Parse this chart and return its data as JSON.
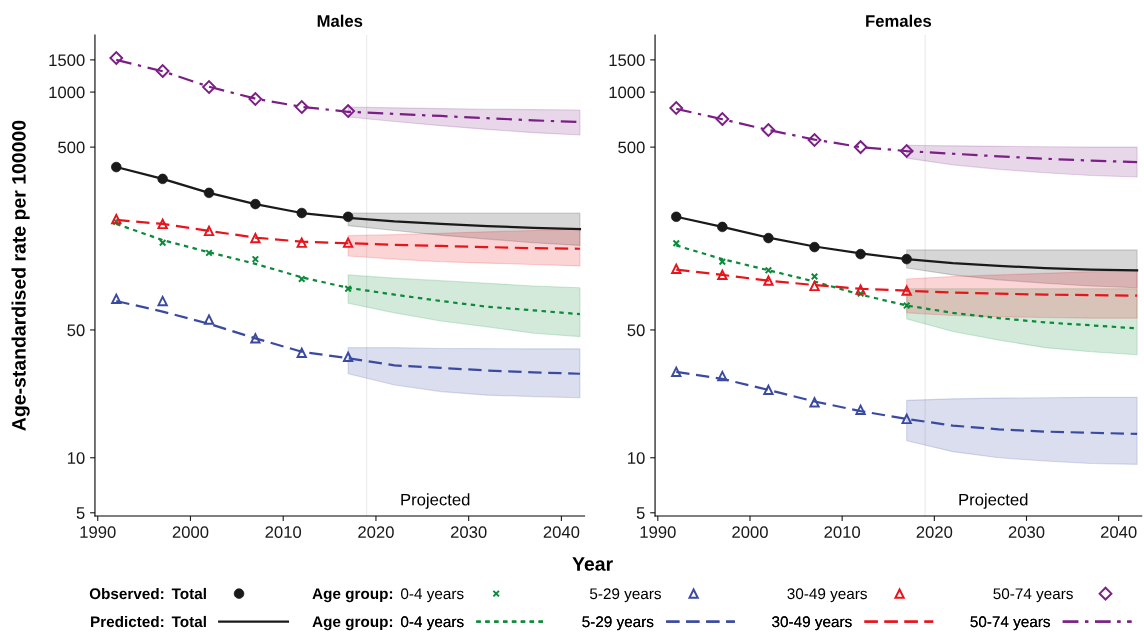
{
  "chart_data": [
    {
      "type": "line",
      "title": "Males",
      "xlabel": "Year",
      "ylabel": "Age-standardised rate per 100000",
      "legend_title": [
        "Observed:",
        "Age group:",
        "Predicted:",
        "Age group:"
      ],
      "legend": "bottom",
      "log": "y",
      "grid": false,
      "xlim": [
        1989.7,
        2042.5
      ],
      "ylim": [
        4.8,
        2050
      ],
      "xticks": [
        1990,
        2000,
        2010,
        2020,
        2030,
        2040
      ],
      "yticks": [
        5,
        10,
        50,
        500,
        1000,
        1500
      ],
      "ref_lines": [
        {
          "axis": "x",
          "value": 2019,
          "label": "Projected",
          "color": "#ebebeb"
        }
      ],
      "series": [
        {
          "name": "Total",
          "type": "scatter",
          "marker": "circle",
          "color": "#1a1a1a",
          "x": [
            1992,
            1997,
            2002,
            2007,
            2012,
            2017
          ],
          "values": [
            389,
            335,
            281,
            244,
            218,
            208
          ]
        },
        {
          "name": "0-4 years",
          "type": "scatter",
          "marker": "cross",
          "color": "#0a8a3a",
          "x": [
            1992,
            1997,
            2002,
            2007,
            2012,
            2017
          ],
          "values": [
            195,
            150,
            132,
            122,
            95,
            84
          ]
        },
        {
          "name": "5-29 years",
          "type": "scatter",
          "marker": "triangle",
          "color": "#3a4aa0",
          "x": [
            1992,
            1997,
            2002,
            2007,
            2012,
            2017
          ],
          "values": [
            74,
            72,
            57,
            45,
            37.5,
            35.6
          ]
        },
        {
          "name": "30-49 years",
          "type": "scatter",
          "marker": "triangle",
          "color": "#e8141c",
          "x": [
            1992,
            1997,
            2002,
            2007,
            2012,
            2017
          ],
          "values": [
            202,
            190,
            174,
            159,
            150,
            150
          ]
        },
        {
          "name": "50-74 years",
          "type": "scatter",
          "marker": "diamond",
          "color": "#7b1f86",
          "x": [
            1992,
            1997,
            2002,
            2007,
            2012,
            2017
          ],
          "values": [
            1535,
            1303,
            1065,
            916,
            828,
            787
          ]
        },
        {
          "name": "Total",
          "line_style": "solid",
          "color": "#1a1a1a",
          "x": [
            1992,
            1997,
            2002,
            2007,
            2012,
            2017,
            2022,
            2027,
            2032,
            2037,
            2042
          ],
          "values": [
            389,
            335,
            281,
            244,
            218,
            205,
            196,
            190,
            185,
            181,
            178
          ],
          "lower": [
            null,
            null,
            null,
            null,
            null,
            186,
            175,
            165,
            157,
            150,
            145
          ],
          "upper": [
            null,
            null,
            null,
            null,
            null,
            218,
            218,
            218,
            218,
            218,
            218
          ]
        },
        {
          "name": "0-4 years",
          "line_style": "dotted",
          "color": "#0a8a3a",
          "x": [
            1992,
            1997,
            2002,
            2007,
            2012,
            2017,
            2022,
            2027,
            2032,
            2037,
            2042
          ],
          "values": [
            190,
            155,
            133,
            115,
            97,
            85,
            78,
            72,
            67,
            64,
            61
          ],
          "lower": [
            null,
            null,
            null,
            null,
            null,
            70,
            62,
            56,
            52,
            48,
            46
          ],
          "upper": [
            null,
            null,
            null,
            null,
            null,
            100,
            96,
            93,
            90,
            87,
            85
          ]
        },
        {
          "name": "5-29 years",
          "line_style": "dashed",
          "color": "#3a4aa0",
          "x": [
            1992,
            1997,
            2002,
            2007,
            2012,
            2017,
            2022,
            2027,
            2032,
            2037,
            2042
          ],
          "values": [
            72,
            63,
            54,
            45,
            38,
            35,
            32,
            31,
            30,
            29.3,
            28.8
          ],
          "lower": [
            null,
            null,
            null,
            null,
            null,
            28.8,
            25,
            23,
            22,
            21.6,
            21.3
          ],
          "upper": [
            null,
            null,
            null,
            null,
            null,
            40,
            40,
            39.6,
            39.5,
            39.4,
            39.4
          ]
        },
        {
          "name": "30-49 years",
          "line_style": "dashed",
          "color": "#e8141c",
          "x": [
            1992,
            1997,
            2002,
            2007,
            2012,
            2017,
            2022,
            2027,
            2032,
            2037,
            2042
          ],
          "values": [
            200,
            190,
            174,
            160,
            152,
            149,
            146,
            144,
            142,
            140,
            139
          ],
          "lower": [
            null,
            null,
            null,
            null,
            null,
            127,
            122,
            118,
            116,
            114,
            112
          ],
          "upper": [
            null,
            null,
            null,
            null,
            null,
            164,
            166,
            169,
            172,
            175,
            178
          ]
        },
        {
          "name": "50-74 years",
          "line_style": "dashdot",
          "color": "#7b1f86",
          "x": [
            1992,
            1997,
            2002,
            2007,
            2012,
            2017,
            2022,
            2027,
            2032,
            2037,
            2042
          ],
          "values": [
            1500,
            1300,
            1070,
            920,
            830,
            780,
            760,
            740,
            720,
            700,
            686
          ],
          "lower": [
            null,
            null,
            null,
            null,
            null,
            730,
            690,
            655,
            625,
            600,
            582
          ],
          "upper": [
            null,
            null,
            null,
            null,
            null,
            828,
            820,
            812,
            806,
            802,
            798
          ]
        }
      ]
    },
    {
      "type": "line",
      "title": "Females",
      "log": "y",
      "grid": false,
      "xlim": [
        1989.7,
        2042.5
      ],
      "ylim": [
        4.8,
        2050
      ],
      "xticks": [
        1990,
        2000,
        2010,
        2020,
        2030,
        2040
      ],
      "yticks": [
        5,
        10,
        50,
        500,
        1000,
        1500
      ],
      "ref_lines": [
        {
          "axis": "x",
          "value": 2019,
          "label": "Projected",
          "color": "#ebebeb"
        }
      ],
      "series": [
        {
          "type": "scatter",
          "marker": "circle",
          "color": "#1a1a1a",
          "x": [
            1992,
            1997,
            2002,
            2007,
            2012,
            2017
          ],
          "values": [
            208,
            183,
            159,
            142,
            130,
            122
          ]
        },
        {
          "type": "scatter",
          "marker": "cross",
          "color": "#0a8a3a",
          "x": [
            1992,
            1997,
            2002,
            2007,
            2012,
            2017
          ],
          "values": [
            149,
            118,
            106,
            98,
            79,
            68
          ]
        },
        {
          "type": "scatter",
          "marker": "triangle",
          "color": "#3a4aa0",
          "x": [
            1992,
            1997,
            2002,
            2007,
            2012,
            2017
          ],
          "values": [
            29.5,
            28,
            23.5,
            20.1,
            18.3,
            16.3
          ]
        },
        {
          "type": "scatter",
          "marker": "triangle",
          "color": "#e8141c",
          "x": [
            1992,
            1997,
            2002,
            2007,
            2012,
            2017
          ],
          "values": [
            108,
            100,
            93,
            87,
            83,
            82
          ]
        },
        {
          "type": "scatter",
          "marker": "diamond",
          "color": "#7b1f86",
          "x": [
            1992,
            1997,
            2002,
            2007,
            2012,
            2017
          ],
          "values": [
            818,
            712,
            620,
            547,
            500,
            476
          ]
        },
        {
          "line_style": "solid",
          "color": "#1a1a1a",
          "x": [
            1992,
            1997,
            2002,
            2007,
            2012,
            2017,
            2022,
            2027,
            2032,
            2037,
            2042
          ],
          "values": [
            208,
            183,
            160,
            143,
            131,
            122,
            116,
            112,
            109,
            107,
            106
          ],
          "lower": [
            null,
            null,
            null,
            null,
            null,
            109,
            100,
            94,
            90,
            87,
            85
          ],
          "upper": [
            null,
            null,
            null,
            null,
            null,
            137,
            137,
            137,
            137,
            137,
            137
          ]
        },
        {
          "line_style": "dotted",
          "color": "#0a8a3a",
          "x": [
            1992,
            1997,
            2002,
            2007,
            2012,
            2017,
            2022,
            2027,
            2032,
            2037,
            2042
          ],
          "values": [
            145,
            122,
            106,
            92,
            78,
            68,
            62,
            58,
            55,
            53,
            51
          ],
          "lower": [
            null,
            null,
            null,
            null,
            null,
            57.5,
            49,
            44,
            40,
            38,
            36.6
          ],
          "upper": [
            null,
            null,
            null,
            null,
            null,
            84,
            84,
            84,
            84,
            84,
            84
          ]
        },
        {
          "line_style": "dashed",
          "color": "#3a4aa0",
          "x": [
            1992,
            1997,
            2002,
            2007,
            2012,
            2017,
            2022,
            2027,
            2032,
            2037,
            2042
          ],
          "values": [
            29.5,
            27,
            23.5,
            20.3,
            18,
            16.3,
            15,
            14.3,
            13.9,
            13.7,
            13.5
          ],
          "lower": [
            null,
            null,
            null,
            null,
            null,
            12.4,
            10.8,
            10,
            9.6,
            9.3,
            9.2
          ],
          "upper": [
            null,
            null,
            null,
            null,
            null,
            20.6,
            21,
            21.2,
            21.3,
            21.4,
            21.4
          ]
        },
        {
          "line_style": "dashed",
          "color": "#e8141c",
          "x": [
            1992,
            1997,
            2002,
            2007,
            2012,
            2017,
            2022,
            2027,
            2032,
            2037,
            2042
          ],
          "values": [
            107,
            100,
            93,
            88,
            84,
            82,
            80,
            79,
            78,
            77.5,
            77
          ],
          "lower": [
            null,
            null,
            null,
            null,
            null,
            62,
            60,
            59,
            58.5,
            58,
            58
          ],
          "upper": [
            null,
            null,
            null,
            null,
            null,
            95,
            98,
            100,
            102,
            104,
            105
          ]
        },
        {
          "line_style": "dashdot",
          "color": "#7b1f86",
          "x": [
            1992,
            1997,
            2002,
            2007,
            2012,
            2017,
            2022,
            2027,
            2032,
            2037,
            2042
          ],
          "values": [
            810,
            710,
            620,
            550,
            500,
            476,
            460,
            445,
            432,
            422,
            414
          ],
          "lower": [
            null,
            null,
            null,
            null,
            null,
            435,
            400,
            378,
            362,
            350,
            343
          ],
          "upper": [
            null,
            null,
            null,
            null,
            null,
            512,
            508,
            505,
            502,
            500,
            500
          ]
        }
      ]
    }
  ]
}
